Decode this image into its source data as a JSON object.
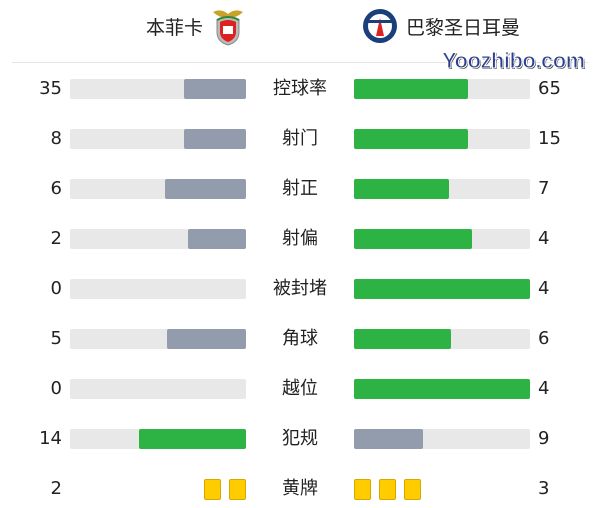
{
  "header": {
    "home": {
      "name": "本菲卡",
      "logo": "benfica-crest"
    },
    "away": {
      "name": "巴黎圣日耳曼",
      "logo": "psg-crest"
    }
  },
  "colors": {
    "leader": "#2db343",
    "other": "#939cac",
    "track": "#e8e8e8",
    "card": "#ffcc00"
  },
  "stats": [
    {
      "label": "控球率",
      "home": "35",
      "away": "65",
      "home_share": 0.35,
      "away_share": 0.65
    },
    {
      "label": "射门",
      "home": "8",
      "away": "15",
      "home_share": 0.35,
      "away_share": 0.65
    },
    {
      "label": "射正",
      "home": "6",
      "away": "7",
      "home_share": 0.46,
      "away_share": 0.54
    },
    {
      "label": "射偏",
      "home": "2",
      "away": "4",
      "home_share": 0.33,
      "away_share": 0.67
    },
    {
      "label": "被封堵",
      "home": "0",
      "away": "4",
      "home_share": 0,
      "away_share": 1
    },
    {
      "label": "角球",
      "home": "5",
      "away": "6",
      "home_share": 0.45,
      "away_share": 0.55
    },
    {
      "label": "越位",
      "home": "0",
      "away": "4",
      "home_share": 0,
      "away_share": 1
    },
    {
      "label": "犯规",
      "home": "14",
      "away": "9",
      "home_share": 0.61,
      "away_share": 0.39
    }
  ],
  "yellow_cards": {
    "label": "黄牌",
    "home": "2",
    "away": "3",
    "home_count": 2,
    "away_count": 3
  },
  "watermark": "Yoozhibo.com"
}
